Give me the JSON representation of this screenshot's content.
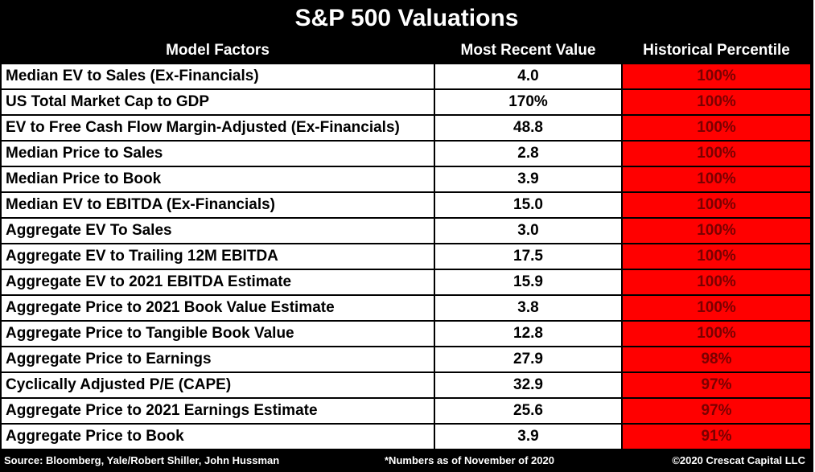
{
  "chart_data": {
    "type": "table",
    "title": "S&P 500 Valuations",
    "columns": [
      "Model Factors",
      "Most Recent Value",
      "Historical Percentile"
    ],
    "rows": [
      {
        "factor": "Median EV to Sales (Ex-Financials)",
        "value": "4.0",
        "percentile": "100%"
      },
      {
        "factor": "US Total Market Cap to GDP",
        "value": "170%",
        "percentile": "100%"
      },
      {
        "factor": "EV to Free Cash Flow Margin-Adjusted (Ex-Financials)",
        "value": "48.8",
        "percentile": "100%"
      },
      {
        "factor": "Median Price to Sales",
        "value": "2.8",
        "percentile": "100%"
      },
      {
        "factor": "Median Price to Book",
        "value": "3.9",
        "percentile": "100%"
      },
      {
        "factor": "Median EV to EBITDA (Ex-Financials)",
        "value": "15.0",
        "percentile": "100%"
      },
      {
        "factor": "Aggregate EV To Sales",
        "value": "3.0",
        "percentile": "100%"
      },
      {
        "factor": "Aggregate EV to Trailing 12M EBITDA",
        "value": "17.5",
        "percentile": "100%"
      },
      {
        "factor": "Aggregate EV to 2021 EBITDA Estimate",
        "value": "15.9",
        "percentile": "100%"
      },
      {
        "factor": "Aggregate Price to 2021 Book Value Estimate",
        "value": "3.8",
        "percentile": "100%"
      },
      {
        "factor": "Aggregate Price to Tangible Book Value",
        "value": "12.8",
        "percentile": "100%"
      },
      {
        "factor": "Aggregate Price to Earnings",
        "value": "27.9",
        "percentile": "98%"
      },
      {
        "factor": "Cyclically Adjusted P/E (CAPE)",
        "value": "32.9",
        "percentile": "97%"
      },
      {
        "factor": "Aggregate Price to 2021 Earnings Estimate",
        "value": "25.6",
        "percentile": "97%"
      },
      {
        "factor": "Aggregate Price to Book",
        "value": "3.9",
        "percentile": "91%"
      }
    ],
    "colors": {
      "frame": "#000000",
      "header_text": "#ffffff",
      "cell_bg": "#ffffff",
      "percentile_bg": "#ff0000",
      "percentile_text": "#7a0000"
    }
  },
  "footer": {
    "source": "Source: Bloomberg, Yale/Robert Shiller, John Hussman",
    "note": "*Numbers as of November of 2020",
    "copyright": "©2020 Crescat Capital LLC"
  }
}
